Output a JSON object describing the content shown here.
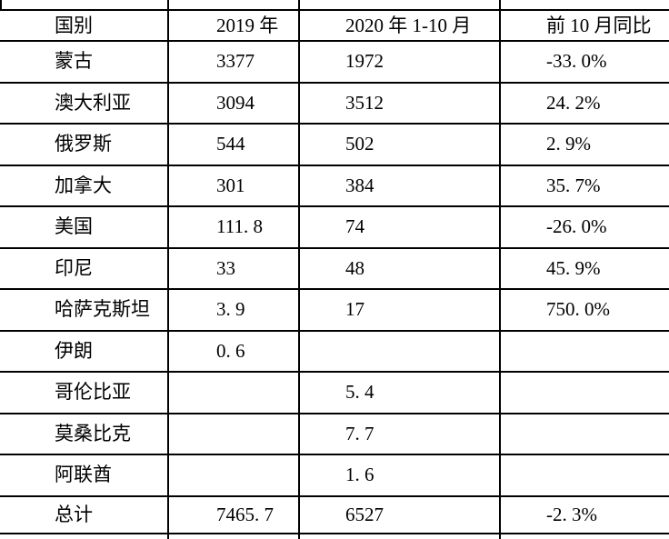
{
  "colors": {
    "background": "#ffffff",
    "border": "#000000",
    "text": "#000000"
  },
  "table": {
    "columns": [
      "国别",
      "2019 年",
      "2020 年 1-10 月",
      "前 10 月同比"
    ],
    "column_keys": [
      "country",
      "y2019",
      "y2020_1_10",
      "first10m_yoy"
    ],
    "rows": [
      {
        "country": "蒙古",
        "y2019": "3377",
        "y2020_1_10": "1972",
        "first10m_yoy": "-33. 0%"
      },
      {
        "country": "澳大利亚",
        "y2019": "3094",
        "y2020_1_10": "3512",
        "first10m_yoy": "24. 2%"
      },
      {
        "country": "俄罗斯",
        "y2019": "544",
        "y2020_1_10": "502",
        "first10m_yoy": "2. 9%"
      },
      {
        "country": "加拿大",
        "y2019": "301",
        "y2020_1_10": "384",
        "first10m_yoy": "35. 7%"
      },
      {
        "country": "美国",
        "y2019": "111. 8",
        "y2020_1_10": "74",
        "first10m_yoy": "-26. 0%"
      },
      {
        "country": "印尼",
        "y2019": "33",
        "y2020_1_10": "48",
        "first10m_yoy": "45. 9%"
      },
      {
        "country": "哈萨克斯坦",
        "y2019": "3. 9",
        "y2020_1_10": "17",
        "first10m_yoy": "750. 0%"
      },
      {
        "country": "伊朗",
        "y2019": "0. 6",
        "y2020_1_10": "",
        "first10m_yoy": ""
      },
      {
        "country": "哥伦比亚",
        "y2019": "",
        "y2020_1_10": "5. 4",
        "first10m_yoy": ""
      },
      {
        "country": "莫桑比克",
        "y2019": "",
        "y2020_1_10": "7. 7",
        "first10m_yoy": ""
      },
      {
        "country": "阿联酋",
        "y2019": "",
        "y2020_1_10": "1. 6",
        "first10m_yoy": ""
      },
      {
        "country": "总计",
        "y2019": "7465. 7",
        "y2020_1_10": "6527",
        "first10m_yoy": "-2. 3%"
      }
    ]
  }
}
